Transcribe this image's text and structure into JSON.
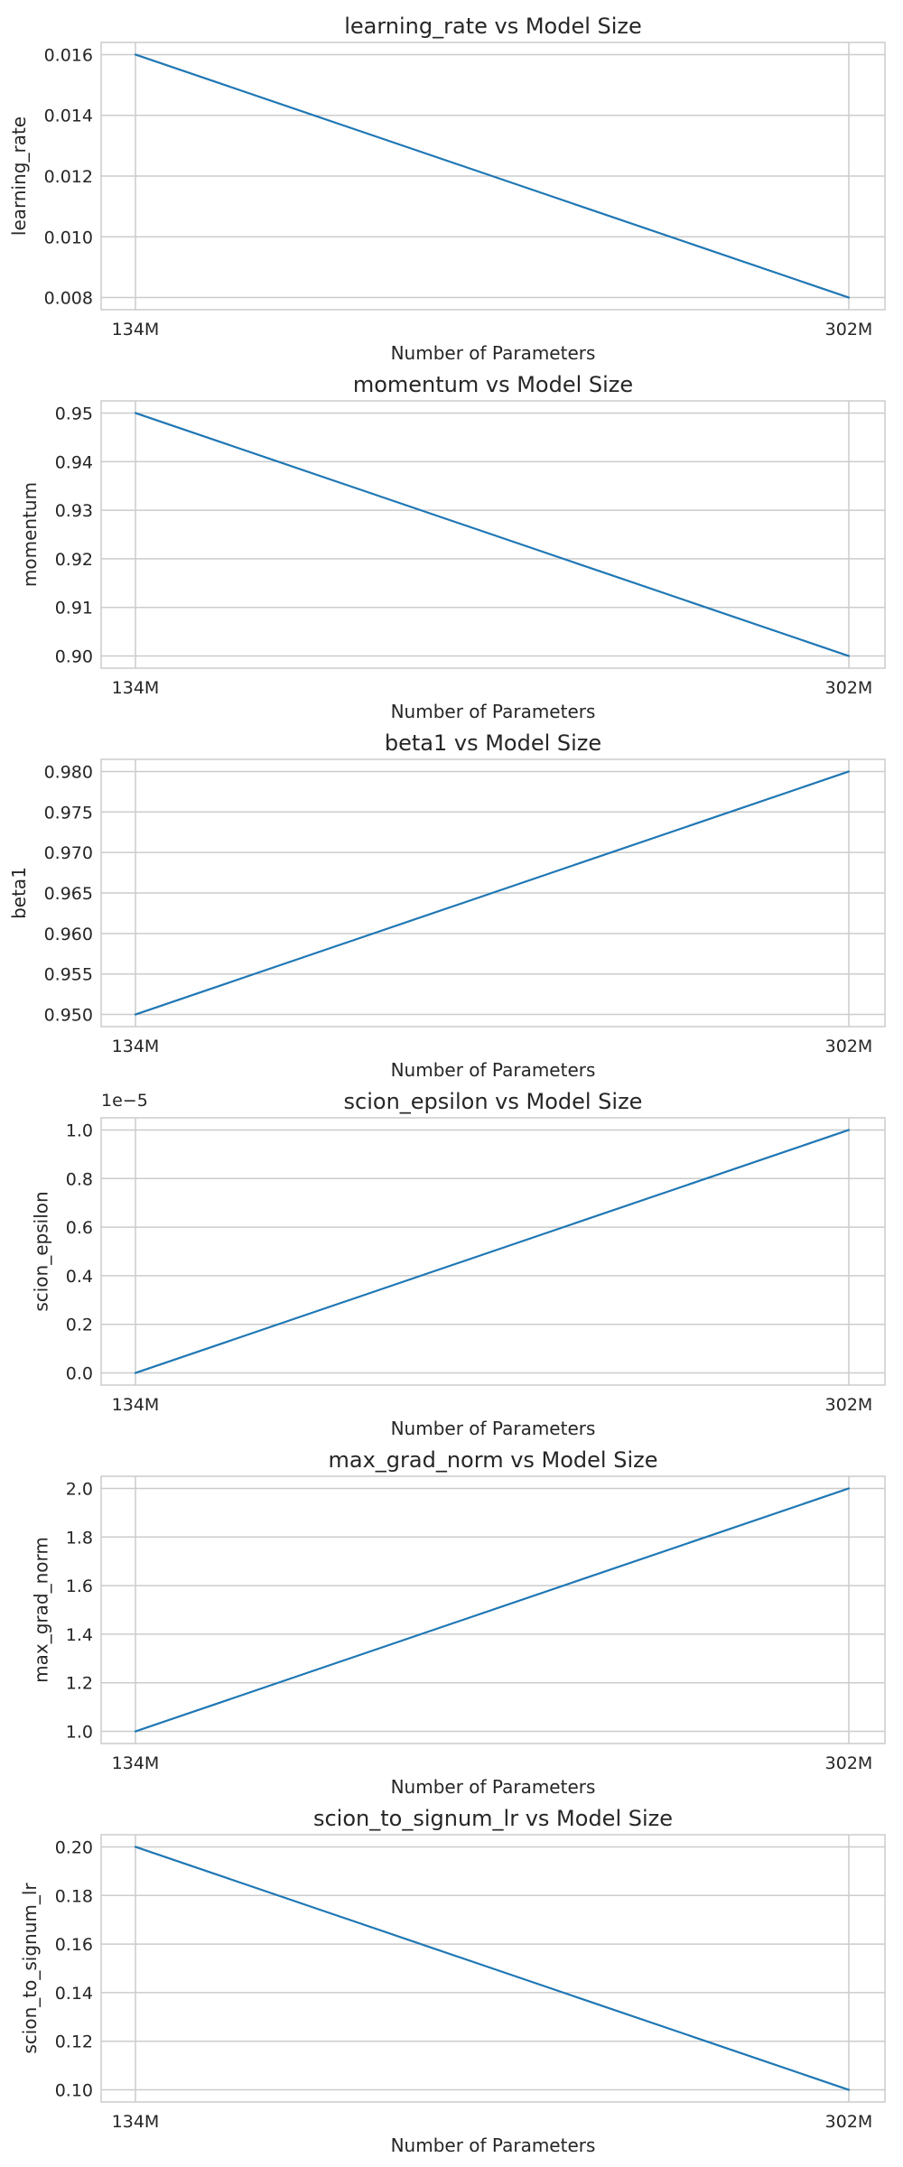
{
  "chart_data": [
    {
      "type": "line",
      "title": "learning_rate vs Model Size",
      "xlabel": "Number of Parameters",
      "ylabel": "learning_rate",
      "x": [
        "134M",
        "302M"
      ],
      "yticks": [
        "0.008",
        "0.010",
        "0.012",
        "0.014",
        "0.016"
      ],
      "ylim": [
        0.0076,
        0.0164
      ],
      "grid": true,
      "color": "#1f77b4",
      "series": [
        {
          "values": [
            0.016,
            0.008
          ]
        }
      ]
    },
    {
      "type": "line",
      "title": "momentum vs Model Size",
      "xlabel": "Number of Parameters",
      "ylabel": "momentum",
      "x": [
        "134M",
        "302M"
      ],
      "yticks": [
        "0.90",
        "0.91",
        "0.92",
        "0.93",
        "0.94",
        "0.95"
      ],
      "ylim": [
        0.8975,
        0.9525
      ],
      "grid": true,
      "color": "#1f77b4",
      "series": [
        {
          "values": [
            0.95,
            0.9
          ]
        }
      ]
    },
    {
      "type": "line",
      "title": "beta1 vs Model Size",
      "xlabel": "Number of Parameters",
      "ylabel": "beta1",
      "x": [
        "134M",
        "302M"
      ],
      "yticks": [
        "0.950",
        "0.955",
        "0.960",
        "0.965",
        "0.970",
        "0.975",
        "0.980"
      ],
      "ylim": [
        0.9485,
        0.9815
      ],
      "grid": true,
      "color": "#1f77b4",
      "series": [
        {
          "values": [
            0.95,
            0.98
          ]
        }
      ]
    },
    {
      "type": "line",
      "title": "scion_epsilon vs Model Size",
      "xlabel": "Number of Parameters",
      "ylabel": "scion_epsilon",
      "x": [
        "134M",
        "302M"
      ],
      "yticks": [
        "0.0",
        "0.2",
        "0.4",
        "0.6",
        "0.8",
        "1.0"
      ],
      "ylim": [
        -0.05,
        1.05
      ],
      "offset_label": "1e−5",
      "grid": true,
      "color": "#1f77b4",
      "series": [
        {
          "values": [
            0.0,
            1.0
          ]
        }
      ]
    },
    {
      "type": "line",
      "title": "max_grad_norm vs Model Size",
      "xlabel": "Number of Parameters",
      "ylabel": "max_grad_norm",
      "x": [
        "134M",
        "302M"
      ],
      "yticks": [
        "1.0",
        "1.2",
        "1.4",
        "1.6",
        "1.8",
        "2.0"
      ],
      "ylim": [
        0.95,
        2.05
      ],
      "grid": true,
      "color": "#1f77b4",
      "series": [
        {
          "values": [
            1.0,
            2.0
          ]
        }
      ]
    },
    {
      "type": "line",
      "title": "scion_to_signum_lr vs Model Size",
      "xlabel": "Number of Parameters",
      "ylabel": "scion_to_signum_lr",
      "x": [
        "134M",
        "302M"
      ],
      "yticks": [
        "0.10",
        "0.12",
        "0.14",
        "0.16",
        "0.18",
        "0.20"
      ],
      "ylim": [
        0.095,
        0.205
      ],
      "grid": true,
      "color": "#1f77b4",
      "series": [
        {
          "values": [
            0.2,
            0.1
          ]
        }
      ]
    }
  ]
}
